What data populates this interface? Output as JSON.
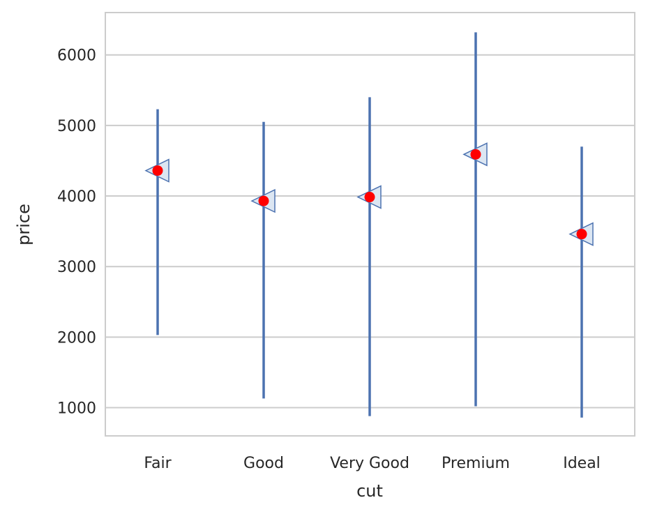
{
  "chart_data": {
    "type": "pointrange",
    "xlabel": "cut",
    "ylabel": "price",
    "categories": [
      "Fair",
      "Good",
      "Very Good",
      "Premium",
      "Ideal"
    ],
    "estimate": [
      4360,
      3930,
      3985,
      4590,
      3460
    ],
    "interval_low": [
      2030,
      1130,
      880,
      1020,
      860
    ],
    "interval_high": [
      5230,
      5050,
      5400,
      6320,
      4700
    ],
    "yticks": [
      1000,
      2000,
      3000,
      4000,
      5000,
      6000
    ],
    "ylim": [
      600,
      6600
    ],
    "grid": "horizontal",
    "colors": {
      "interval": "#4c72b0",
      "marker_fill": "#dce6f2",
      "marker_edge": "#4c72b0",
      "point": "#ff0000",
      "grid": "#cccccc",
      "frame": "#cccccc",
      "text": "#262626"
    }
  }
}
